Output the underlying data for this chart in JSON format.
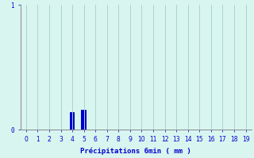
{
  "categories": [
    0,
    1,
    2,
    3,
    4,
    5,
    6,
    7,
    8,
    9,
    10,
    11,
    12,
    13,
    14,
    15,
    16,
    17,
    18,
    19
  ],
  "values": [
    0,
    0,
    0,
    0,
    0.14,
    0.16,
    0,
    0,
    0,
    0,
    0,
    0,
    0,
    0,
    0,
    0,
    0,
    0,
    0,
    0
  ],
  "bar_color": "#0000cc",
  "bg_color": "#d8f5f0",
  "grid_color": "#aed4cc",
  "axis_color": "#888888",
  "text_color": "#0000cc",
  "xlabel": "Précipitations 6min ( mm )",
  "ylim": [
    0,
    1
  ],
  "xlim": [
    -0.5,
    19.5
  ],
  "yticks": [
    0,
    1
  ],
  "xticks": [
    0,
    1,
    2,
    3,
    4,
    5,
    6,
    7,
    8,
    9,
    10,
    11,
    12,
    13,
    14,
    15,
    16,
    17,
    18,
    19
  ],
  "bar_width": 0.45,
  "xlabel_fontsize": 6.5,
  "tick_fontsize": 5.5
}
